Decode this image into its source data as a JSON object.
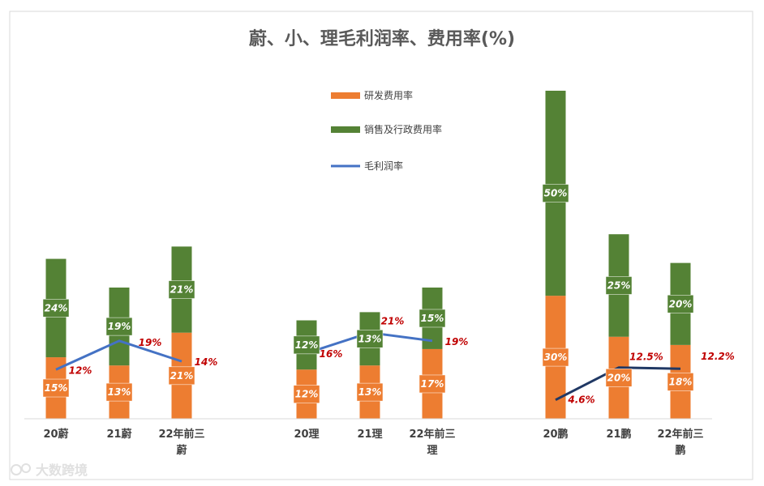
{
  "chart_data": {
    "type": "bar",
    "stacked": true,
    "title": "蔚、小、理毛利润率、费用率(%)",
    "ylim": [
      0,
      85
    ],
    "legend": [
      {
        "name": "研发费用率",
        "color": "#ED7D31",
        "kind": "bar"
      },
      {
        "name": "销售及行政费用率",
        "color": "#548235",
        "kind": "bar"
      },
      {
        "name": "毛利润率",
        "color": "#4472C4",
        "kind": "line"
      }
    ],
    "groups": [
      {
        "name": "蔚",
        "line_color": "#4472C4",
        "categories": [
          [
            "20蔚"
          ],
          [
            "21蔚"
          ],
          [
            "22年前三",
            "蔚"
          ]
        ],
        "rd": [
          15,
          13,
          21
        ],
        "sga": [
          24,
          19,
          21
        ],
        "gross_margin": [
          12,
          19,
          14
        ],
        "gm_labels": [
          "12%",
          "19%",
          "14%"
        ]
      },
      {
        "name": "理",
        "line_color": "#4472C4",
        "categories": [
          [
            "20理"
          ],
          [
            "21理"
          ],
          [
            "22年前三",
            "理"
          ]
        ],
        "rd": [
          12,
          13,
          17
        ],
        "sga": [
          12,
          13,
          15
        ],
        "gross_margin": [
          16,
          21,
          19
        ],
        "gm_labels": [
          "16%",
          "21%",
          "19%"
        ]
      },
      {
        "name": "鹏",
        "line_color": "#203864",
        "categories": [
          [
            "20鹏"
          ],
          [
            "21鹏"
          ],
          [
            "22年前三",
            "鹏"
          ]
        ],
        "rd": [
          30,
          20,
          18
        ],
        "sga": [
          50,
          25,
          20
        ],
        "gross_margin": [
          4.6,
          12.5,
          12.2
        ],
        "gm_labels": [
          "4.6%",
          "12.5%",
          "12.2%"
        ]
      }
    ]
  },
  "watermark": "大数跨境"
}
